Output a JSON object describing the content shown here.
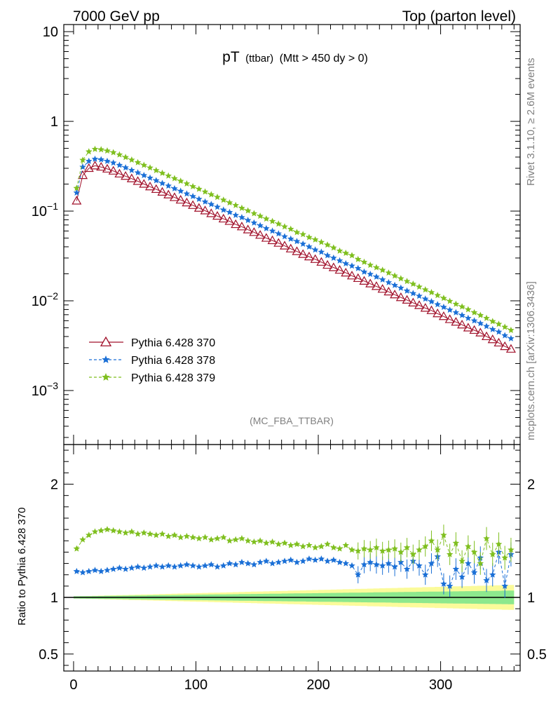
{
  "header": {
    "energy": "7000 GeV pp",
    "process": "Top (parton level)"
  },
  "side_labels": {
    "rivet": "Rivet 3.1.10, ≥ 2.6M events",
    "mcplots": "mcplots.cern.ch [arXiv:1306.3436]"
  },
  "plot_title": {
    "main": "pT",
    "sub": "(ttbar)",
    "cut": "(Mtt > 450 dy > 0)"
  },
  "analysis_label": "(MC_FBA_TTBAR)",
  "ratio_ylabel": "Ratio to Pythia 6.428 370",
  "legend": [
    {
      "label": "Pythia 6.428 370",
      "color": "#a0102a",
      "marker": "open-triangle",
      "line": "solid"
    },
    {
      "label": "Pythia 6.428 378",
      "color": "#1a6fd6",
      "marker": "star",
      "line": "dashed"
    },
    {
      "label": "Pythia 6.428 379",
      "color": "#7fbf1f",
      "marker": "star",
      "line": "dashed"
    }
  ],
  "band_colors": {
    "inner": "#8de88d",
    "outer": "#fbfb9a"
  },
  "chart_data": [
    {
      "type": "line",
      "scale": "log",
      "x_range": [
        -8,
        365
      ],
      "ylim": [
        0.00025,
        12
      ],
      "y_ticks": [
        {
          "value": 10,
          "label": "10"
        },
        {
          "value": 1,
          "label": "1"
        },
        {
          "value": 0.1,
          "base": "10",
          "exp": "−1"
        },
        {
          "value": 0.01,
          "base": "10",
          "exp": "−2"
        },
        {
          "value": 0.001,
          "base": "10",
          "exp": "−3"
        }
      ],
      "x_start": 2.5,
      "x_step": 5,
      "n_bins": 72,
      "series": [
        {
          "name": "Pythia 6.428 370",
          "values": [
            0.13,
            0.25,
            0.3,
            0.32,
            0.31,
            0.295,
            0.28,
            0.26,
            0.245,
            0.23,
            0.215,
            0.2,
            0.187,
            0.175,
            0.163,
            0.152,
            0.142,
            0.133,
            0.124,
            0.116,
            0.108,
            0.101,
            0.094,
            0.088,
            0.082,
            0.077,
            0.071,
            0.067,
            0.062,
            0.058,
            0.054,
            0.05,
            0.047,
            0.044,
            0.041,
            0.038,
            0.0355,
            0.033,
            0.031,
            0.029,
            0.027,
            0.025,
            0.0235,
            0.022,
            0.0205,
            0.019,
            0.0178,
            0.0166,
            0.0155,
            0.0145,
            0.0135,
            0.0126,
            0.0117,
            0.0109,
            0.0102,
            0.0095,
            0.0089,
            0.0083,
            0.0078,
            0.0072,
            0.0067,
            0.0062,
            0.0058,
            0.0054,
            0.005,
            0.0047,
            0.0044,
            0.004,
            0.0037,
            0.0034,
            0.0031,
            0.0029
          ]
        },
        {
          "name": "Pythia 6.428 378",
          "values": [
            0.16,
            0.31,
            0.36,
            0.38,
            0.375,
            0.36,
            0.345,
            0.325,
            0.305,
            0.285,
            0.268,
            0.25,
            0.234,
            0.219,
            0.204,
            0.191,
            0.178,
            0.167,
            0.156,
            0.146,
            0.136,
            0.127,
            0.119,
            0.111,
            0.103,
            0.097,
            0.09,
            0.085,
            0.079,
            0.074,
            0.069,
            0.064,
            0.06,
            0.056,
            0.052,
            0.049,
            0.046,
            0.043,
            0.04,
            0.037,
            0.035,
            0.032,
            0.03,
            0.028,
            0.026,
            0.0245,
            0.023,
            0.021,
            0.0198,
            0.0185,
            0.0172,
            0.016,
            0.0149,
            0.0139,
            0.0129,
            0.0121,
            0.0113,
            0.0105,
            0.0098,
            0.0091,
            0.0085,
            0.0079,
            0.0074,
            0.0069,
            0.0064,
            0.006,
            0.0056,
            0.0052,
            0.0048,
            0.0045,
            0.0041,
            0.0038
          ]
        },
        {
          "name": "Pythia 6.428 379",
          "values": [
            0.18,
            0.37,
            0.46,
            0.49,
            0.485,
            0.47,
            0.45,
            0.425,
            0.398,
            0.372,
            0.348,
            0.325,
            0.304,
            0.284,
            0.265,
            0.247,
            0.231,
            0.216,
            0.202,
            0.188,
            0.176,
            0.164,
            0.153,
            0.143,
            0.133,
            0.124,
            0.116,
            0.108,
            0.101,
            0.094,
            0.088,
            0.082,
            0.077,
            0.072,
            0.067,
            0.063,
            0.058,
            0.055,
            0.051,
            0.048,
            0.045,
            0.042,
            0.039,
            0.036,
            0.034,
            0.032,
            0.029,
            0.027,
            0.025,
            0.0235,
            0.022,
            0.0205,
            0.019,
            0.0177,
            0.0165,
            0.0154,
            0.0143,
            0.0133,
            0.0124,
            0.0115,
            0.0107,
            0.0099,
            0.0092,
            0.0086,
            0.008,
            0.0074,
            0.0069,
            0.0064,
            0.0059,
            0.0055,
            0.0051,
            0.0047
          ]
        }
      ]
    },
    {
      "type": "line",
      "ylabel": "Ratio to Pythia 6.428 370",
      "x_range": [
        -8,
        365
      ],
      "ylim": [
        0.35,
        2.35
      ],
      "y_ticks": [
        0.5,
        1,
        2
      ],
      "x_ticks": [
        0,
        100,
        200,
        300
      ],
      "x_start": 2.5,
      "x_step": 5,
      "n_bins": 72,
      "band_inner_halfwidth": {
        "start": 0.01,
        "end": 0.06
      },
      "band_outer_halfwidth": {
        "start": 0.01,
        "end": 0.11
      },
      "series": [
        {
          "name": "Pythia 6.428 378",
          "values": [
            1.23,
            1.22,
            1.23,
            1.24,
            1.23,
            1.24,
            1.25,
            1.26,
            1.25,
            1.26,
            1.27,
            1.26,
            1.27,
            1.28,
            1.27,
            1.28,
            1.27,
            1.28,
            1.29,
            1.28,
            1.27,
            1.28,
            1.29,
            1.27,
            1.28,
            1.3,
            1.29,
            1.31,
            1.3,
            1.29,
            1.31,
            1.32,
            1.3,
            1.31,
            1.32,
            1.33,
            1.31,
            1.32,
            1.34,
            1.33,
            1.34,
            1.32,
            1.33,
            1.31,
            1.3,
            1.28,
            1.2,
            1.29,
            1.31,
            1.29,
            1.28,
            1.3,
            1.27,
            1.31,
            1.25,
            1.32,
            1.28,
            1.2,
            1.3,
            1.36,
            1.12,
            1.1,
            1.25,
            1.18,
            1.3,
            1.22,
            1.35,
            1.15,
            1.2,
            1.4,
            1.1,
            1.38
          ]
        },
        {
          "name": "Pythia 6.428 379",
          "values": [
            1.43,
            1.51,
            1.55,
            1.58,
            1.59,
            1.6,
            1.59,
            1.58,
            1.57,
            1.58,
            1.56,
            1.57,
            1.56,
            1.55,
            1.56,
            1.54,
            1.55,
            1.53,
            1.54,
            1.53,
            1.52,
            1.53,
            1.51,
            1.52,
            1.53,
            1.5,
            1.51,
            1.52,
            1.5,
            1.49,
            1.5,
            1.48,
            1.49,
            1.47,
            1.48,
            1.46,
            1.47,
            1.45,
            1.46,
            1.44,
            1.45,
            1.47,
            1.44,
            1.43,
            1.46,
            1.42,
            1.41,
            1.43,
            1.42,
            1.44,
            1.41,
            1.42,
            1.43,
            1.4,
            1.44,
            1.38,
            1.42,
            1.45,
            1.5,
            1.42,
            1.55,
            1.38,
            1.48,
            1.32,
            1.45,
            1.4,
            1.3,
            1.52,
            1.38,
            1.47,
            1.35,
            1.42
          ]
        }
      ]
    }
  ]
}
